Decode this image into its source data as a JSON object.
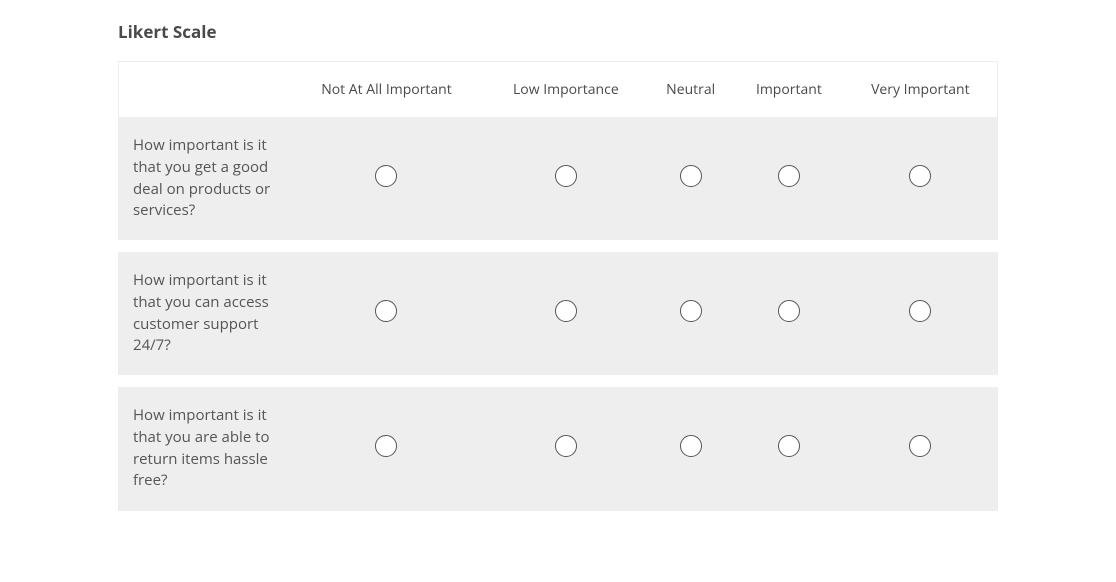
{
  "title": "Likert Scale",
  "columns": [
    "Not At All Important",
    "Low Importance",
    "Neutral",
    "Important",
    "Very Important"
  ],
  "questions": [
    "How important is it that you get a good deal on products or services?",
    "How important is it that you can access customer support 24/7?",
    "How important is it that you are able to return items hassle free?"
  ],
  "styling": {
    "title_color": "#4a4a4a",
    "title_fontsize": 17,
    "header_color": "#4a4a4a",
    "header_fontsize": 14,
    "question_color": "#555555",
    "question_fontsize": 15,
    "row_background": "#eeeeee",
    "row_gap_color": "#ffffff",
    "border_color": "#ededed",
    "radio_border": "#555555",
    "radio_size": 22
  }
}
